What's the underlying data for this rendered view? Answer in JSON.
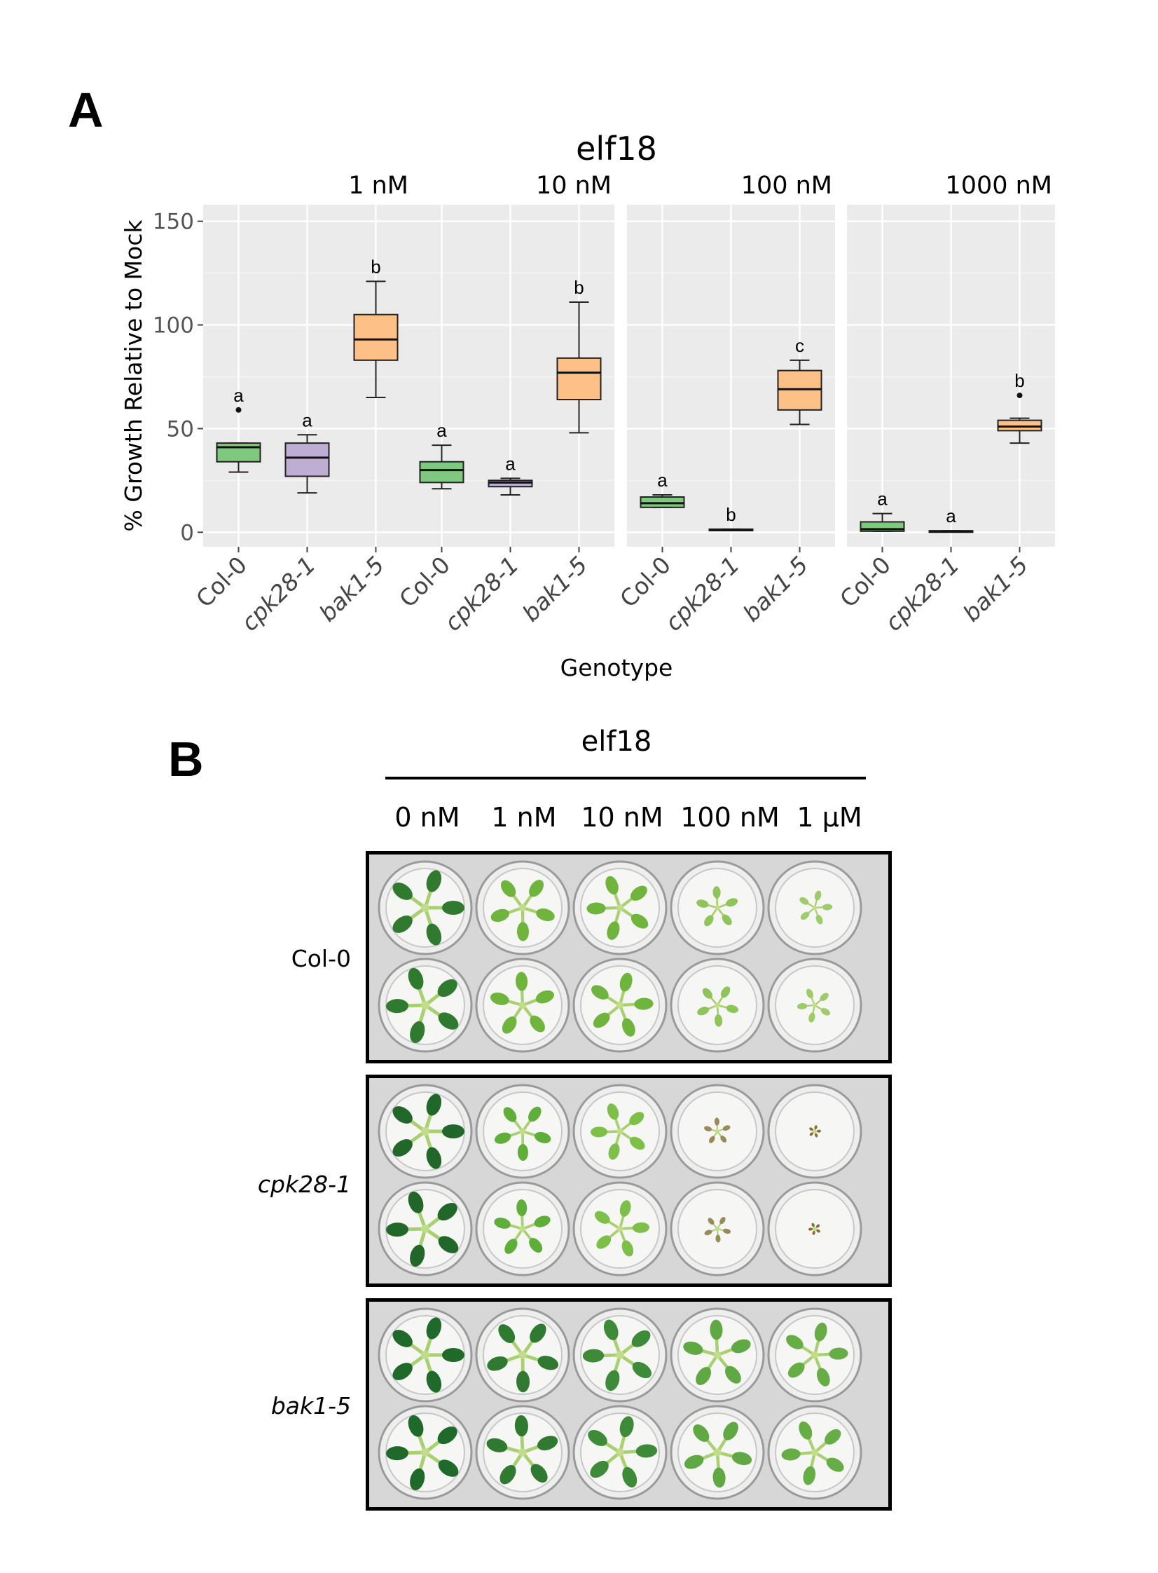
{
  "panel_labels": {
    "a": "A",
    "b": "B"
  },
  "chart_data": {
    "type": "boxplot",
    "title": "elf18",
    "xlabel": "Genotype",
    "ylabel": "% Growth Relative to Mock",
    "ylim": [
      -7,
      158
    ],
    "yticks": [
      0,
      50,
      100,
      150
    ],
    "grid": true,
    "genotypes": [
      "Col-0",
      "cpk28-1",
      "bak1-5"
    ],
    "colors": {
      "Col-0": "#7fc97f",
      "cpk28-1": "#beaed4",
      "bak1-5": "#fdc086"
    },
    "facets": [
      {
        "label": "1 nM",
        "boxes": [
          {
            "genotype": "Col-0",
            "min": 29,
            "q1": 34,
            "median": 41,
            "q3": 43,
            "max": 43,
            "outliers": [
              59
            ],
            "letter": "a"
          },
          {
            "genotype": "cpk28-1",
            "min": 19,
            "q1": 27,
            "median": 36,
            "q3": 43,
            "max": 47,
            "outliers": [],
            "letter": "a"
          },
          {
            "genotype": "bak1-5",
            "min": 65,
            "q1": 83,
            "median": 93,
            "q3": 105,
            "max": 121,
            "outliers": [],
            "letter": "b"
          }
        ]
      },
      {
        "label": "10 nM",
        "boxes": [
          {
            "genotype": "Col-0",
            "min": 21,
            "q1": 24,
            "median": 30,
            "q3": 34,
            "max": 42,
            "outliers": [],
            "letter": "a"
          },
          {
            "genotype": "cpk28-1",
            "min": 18,
            "q1": 22,
            "median": 24,
            "q3": 25,
            "max": 26,
            "outliers": [],
            "letter": "a"
          },
          {
            "genotype": "bak1-5",
            "min": 48,
            "q1": 64,
            "median": 77,
            "q3": 84,
            "max": 111,
            "outliers": [],
            "letter": "b"
          }
        ]
      },
      {
        "label": "100 nM",
        "boxes": [
          {
            "genotype": "Col-0",
            "min": 12,
            "q1": 12,
            "median": 14,
            "q3": 17,
            "max": 18,
            "outliers": [],
            "letter": "a"
          },
          {
            "genotype": "cpk28-1",
            "min": 1,
            "q1": 1,
            "median": 1,
            "q3": 1.5,
            "max": 1.5,
            "outliers": [],
            "letter": "b"
          },
          {
            "genotype": "bak1-5",
            "min": 52,
            "q1": 59,
            "median": 69,
            "q3": 78,
            "max": 83,
            "outliers": [],
            "letter": "c"
          }
        ]
      },
      {
        "label": "1000 nM",
        "boxes": [
          {
            "genotype": "Col-0",
            "min": 0.5,
            "q1": 0.5,
            "median": 1.5,
            "q3": 5,
            "max": 9,
            "outliers": [],
            "letter": "a"
          },
          {
            "genotype": "cpk28-1",
            "min": 0.3,
            "q1": 0.3,
            "median": 0.5,
            "q3": 0.7,
            "max": 0.7,
            "outliers": [],
            "letter": "a"
          },
          {
            "genotype": "bak1-5",
            "min": 43,
            "q1": 49,
            "median": 51,
            "q3": 54,
            "max": 55,
            "outliers": [
              66
            ],
            "letter": "b"
          }
        ]
      }
    ]
  },
  "panel_b": {
    "title": "elf18",
    "concentrations": [
      "0 nM",
      "1 nM",
      "10 nM",
      "100 nM",
      "1 µM"
    ],
    "plates": [
      {
        "genotype": "Col-0",
        "italic": false,
        "plant_sizes": [
          1.0,
          0.85,
          0.85,
          0.55,
          0.45
        ],
        "plant_colors": [
          "#2f7a2f",
          "#6fb43c",
          "#6fb43c",
          "#8fc45a",
          "#9fcc6a"
        ]
      },
      {
        "genotype": "cpk28-1",
        "italic": true,
        "plant_sizes": [
          1.0,
          0.75,
          0.75,
          0.35,
          0.15
        ],
        "plant_colors": [
          "#22672a",
          "#5fae3a",
          "#7dbf48",
          "#9a8a5a",
          "#8a6a3a"
        ]
      },
      {
        "genotype": "bak1-5",
        "italic": true,
        "plant_sizes": [
          1.0,
          0.95,
          0.95,
          0.9,
          0.85
        ],
        "plant_colors": [
          "#1f6a2a",
          "#2f7a30",
          "#3d8a38",
          "#5fa843",
          "#66ad46"
        ]
      }
    ]
  }
}
